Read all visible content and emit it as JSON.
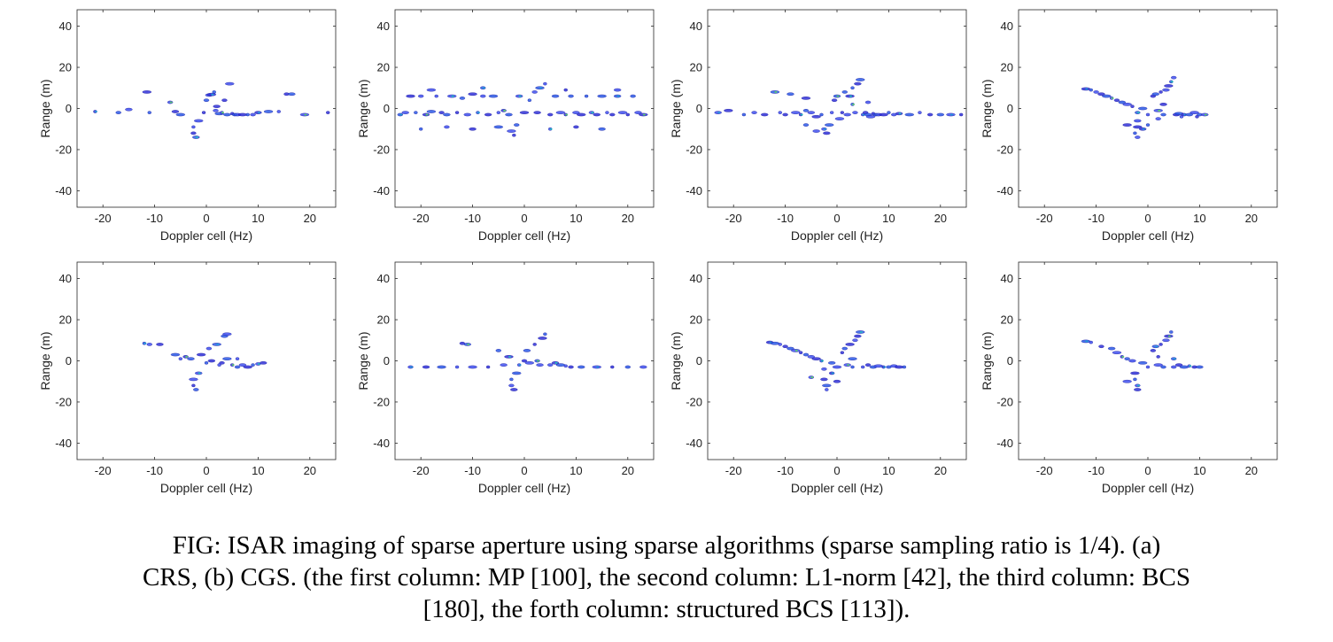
{
  "caption": {
    "lines": [
      "FIG:  ISAR imaging of sparse aperture using sparse algorithms (sparse sampling ratio is 1/4). (a)",
      "CRS, (b) CGS. (the first column: MP [100], the second column: L1-norm [42], the third column: BCS",
      "[180], the forth column: structured BCS [113])."
    ]
  },
  "chart_data": [
    {
      "type": "scatter",
      "row": "a",
      "column": 1,
      "xlabel": "Doppler cell (Hz)",
      "ylabel": "Range (m)",
      "xlim": [
        -25,
        25
      ],
      "ylim": [
        -48,
        48
      ],
      "xticks": [
        -20,
        -10,
        0,
        10,
        20
      ],
      "yticks": [
        40,
        20,
        0,
        -20,
        -40
      ],
      "points": [
        [
          -21.5,
          -1.5
        ],
        [
          -17,
          -2
        ],
        [
          -15,
          -0.5
        ],
        [
          -11.5,
          8
        ],
        [
          -11,
          -2
        ],
        [
          -7,
          3
        ],
        [
          -6,
          -1.5
        ],
        [
          -5,
          -3
        ],
        [
          -2.5,
          -9
        ],
        [
          -2.5,
          -12
        ],
        [
          -2,
          -14
        ],
        [
          -1.5,
          -6
        ],
        [
          -0.5,
          -2
        ],
        [
          0,
          4
        ],
        [
          0.5,
          6.5
        ],
        [
          1,
          6.8
        ],
        [
          1.5,
          8
        ],
        [
          1.8,
          -1
        ],
        [
          2,
          1
        ],
        [
          2.5,
          -2.5
        ],
        [
          3,
          -2
        ],
        [
          3.5,
          4
        ],
        [
          4,
          -3
        ],
        [
          4.5,
          12
        ],
        [
          5,
          -2.5
        ],
        [
          5.5,
          -3
        ],
        [
          6,
          -3
        ],
        [
          7,
          -3
        ],
        [
          8,
          -3
        ],
        [
          9,
          -3
        ],
        [
          10,
          -2
        ],
        [
          12,
          -1.5
        ],
        [
          14,
          -1.5
        ],
        [
          15.5,
          7
        ],
        [
          16.5,
          7
        ],
        [
          19,
          -3
        ],
        [
          23.5,
          -2
        ]
      ]
    },
    {
      "type": "scatter",
      "row": "a",
      "column": 2,
      "xlabel": "Doppler cell (Hz)",
      "ylabel": "Range (m)",
      "xlim": [
        -25,
        25
      ],
      "ylim": [
        -48,
        48
      ],
      "xticks": [
        -20,
        -10,
        0,
        10,
        20
      ],
      "yticks": [
        40,
        20,
        0,
        -20,
        -40
      ],
      "points": [
        [
          -24,
          -3
        ],
        [
          -23,
          -2
        ],
        [
          -22,
          6
        ],
        [
          -21,
          -2
        ],
        [
          -20,
          6
        ],
        [
          -19,
          -3
        ],
        [
          -18,
          -1.5
        ],
        [
          -17,
          6
        ],
        [
          -16,
          -2
        ],
        [
          -15,
          -3
        ],
        [
          -14,
          6
        ],
        [
          -13,
          -2
        ],
        [
          -12,
          5
        ],
        [
          -11,
          -3
        ],
        [
          -10,
          7
        ],
        [
          -9,
          -2
        ],
        [
          -8,
          6
        ],
        [
          -7,
          -3
        ],
        [
          -6,
          6
        ],
        [
          -5,
          -2
        ],
        [
          -4,
          -1
        ],
        [
          -3,
          -3
        ],
        [
          -2.5,
          -11
        ],
        [
          -2,
          -13
        ],
        [
          -1.5,
          -8
        ],
        [
          -1,
          6
        ],
        [
          0,
          -2
        ],
        [
          1,
          4
        ],
        [
          2,
          8
        ],
        [
          2.5,
          -2
        ],
        [
          3,
          10
        ],
        [
          4,
          12
        ],
        [
          5,
          -3
        ],
        [
          6,
          6
        ],
        [
          7,
          -2
        ],
        [
          8,
          -3
        ],
        [
          9,
          6
        ],
        [
          10,
          -2
        ],
        [
          11,
          -3
        ],
        [
          12,
          6
        ],
        [
          13,
          -2
        ],
        [
          14,
          -3
        ],
        [
          15,
          6
        ],
        [
          16,
          -2
        ],
        [
          17,
          -3
        ],
        [
          18,
          6
        ],
        [
          19,
          -2
        ],
        [
          20,
          -3
        ],
        [
          21,
          6
        ],
        [
          22,
          -2
        ],
        [
          23,
          -3
        ],
        [
          -20,
          -10
        ],
        [
          -15,
          -9
        ],
        [
          -10,
          -10
        ],
        [
          -5,
          -9
        ],
        [
          5,
          -10
        ],
        [
          10,
          -9
        ],
        [
          15,
          -10
        ],
        [
          -18,
          9
        ],
        [
          8,
          9
        ],
        [
          -8,
          10
        ],
        [
          18,
          9
        ]
      ]
    },
    {
      "type": "scatter",
      "row": "a",
      "column": 3,
      "xlabel": "Doppler cell (Hz)",
      "ylabel": "Range (m)",
      "xlim": [
        -25,
        25
      ],
      "ylim": [
        -48,
        48
      ],
      "xticks": [
        -20,
        -10,
        0,
        10,
        20
      ],
      "yticks": [
        40,
        20,
        0,
        -20,
        -40
      ],
      "points": [
        [
          -23,
          -2
        ],
        [
          -21,
          -1
        ],
        [
          -18,
          -3
        ],
        [
          -16,
          -2
        ],
        [
          -14,
          -3
        ],
        [
          -12,
          8
        ],
        [
          -11,
          -2
        ],
        [
          -10,
          -3
        ],
        [
          -9,
          7
        ],
        [
          -8,
          -2
        ],
        [
          -7,
          -3
        ],
        [
          -6,
          -1
        ],
        [
          -5,
          -2
        ],
        [
          -4,
          -4
        ],
        [
          -3,
          -3
        ],
        [
          -2.5,
          -10
        ],
        [
          -2,
          -12
        ],
        [
          -1.5,
          -8
        ],
        [
          -1,
          -2
        ],
        [
          -0.5,
          4
        ],
        [
          0,
          6
        ],
        [
          0.5,
          -5
        ],
        [
          1,
          -2
        ],
        [
          1.5,
          8
        ],
        [
          2,
          -3
        ],
        [
          2.5,
          6
        ],
        [
          3,
          10
        ],
        [
          3.5,
          -2
        ],
        [
          4,
          12
        ],
        [
          4.5,
          14
        ],
        [
          5,
          -3
        ],
        [
          5.5,
          -2
        ],
        [
          6,
          -3
        ],
        [
          6.5,
          -4
        ],
        [
          7,
          -2.5
        ],
        [
          7.5,
          -3
        ],
        [
          8,
          -3
        ],
        [
          9,
          -3
        ],
        [
          10,
          -2
        ],
        [
          11,
          -3
        ],
        [
          12,
          -2.5
        ],
        [
          14,
          -3
        ],
        [
          16,
          -2
        ],
        [
          18,
          -3
        ],
        [
          20,
          -3
        ],
        [
          22,
          -3
        ],
        [
          24,
          -3
        ],
        [
          -6,
          -8
        ],
        [
          -4,
          -11
        ],
        [
          -6,
          5
        ],
        [
          3,
          2
        ],
        [
          6,
          3
        ]
      ]
    },
    {
      "type": "scatter",
      "row": "a",
      "column": 4,
      "xlabel": "Doppler cell (Hz)",
      "ylabel": "Range (m)",
      "xlim": [
        -25,
        25
      ],
      "ylim": [
        -48,
        48
      ],
      "xticks": [
        -20,
        -10,
        0,
        10,
        20
      ],
      "yticks": [
        40,
        20,
        0,
        -20,
        -40
      ],
      "points": [
        [
          -12,
          9.5
        ],
        [
          -11,
          9
        ],
        [
          -10,
          8
        ],
        [
          -9,
          7
        ],
        [
          -8,
          6
        ],
        [
          -7,
          5
        ],
        [
          -6,
          4
        ],
        [
          -5,
          3
        ],
        [
          -4,
          2
        ],
        [
          -3,
          1
        ],
        [
          -2,
          -2
        ],
        [
          -2,
          -6
        ],
        [
          -2,
          -9
        ],
        [
          -2.5,
          -12
        ],
        [
          -2,
          -14
        ],
        [
          -1,
          -10
        ],
        [
          -1,
          0
        ],
        [
          0,
          -3
        ],
        [
          1,
          6
        ],
        [
          1.5,
          7
        ],
        [
          2,
          -1
        ],
        [
          2.5,
          8
        ],
        [
          3,
          -3
        ],
        [
          3.5,
          9
        ],
        [
          4,
          11
        ],
        [
          4.5,
          13
        ],
        [
          5,
          15
        ],
        [
          5.5,
          -3
        ],
        [
          6,
          -2.5
        ],
        [
          6.5,
          -4
        ],
        [
          7,
          -3
        ],
        [
          8,
          -3
        ],
        [
          9,
          -2
        ],
        [
          9.5,
          -4
        ],
        [
          10,
          -3
        ],
        [
          11,
          -3
        ],
        [
          -4,
          -8
        ],
        [
          0,
          -8
        ],
        [
          2,
          -5
        ],
        [
          3,
          2
        ]
      ]
    },
    {
      "type": "scatter",
      "row": "b",
      "column": 1,
      "xlabel": "Doppler cell (Hz)",
      "ylabel": "Range (m)",
      "xlim": [
        -25,
        25
      ],
      "ylim": [
        -48,
        48
      ],
      "xticks": [
        -20,
        -10,
        0,
        10,
        20
      ],
      "yticks": [
        40,
        20,
        0,
        -20,
        -40
      ],
      "points": [
        [
          -12,
          8.5
        ],
        [
          -11,
          8
        ],
        [
          -9,
          8
        ],
        [
          -6,
          3
        ],
        [
          -5,
          1
        ],
        [
          -4,
          2
        ],
        [
          -3,
          1
        ],
        [
          -2.5,
          -9
        ],
        [
          -2.5,
          -12
        ],
        [
          -2,
          -14
        ],
        [
          -1.5,
          -6
        ],
        [
          -1,
          3
        ],
        [
          0,
          -1
        ],
        [
          0.5,
          6
        ],
        [
          1,
          0
        ],
        [
          2,
          8
        ],
        [
          2.5,
          -2
        ],
        [
          3,
          -1
        ],
        [
          3.5,
          12
        ],
        [
          4,
          13
        ],
        [
          5,
          -2
        ],
        [
          6,
          -3
        ],
        [
          7,
          -2
        ],
        [
          8,
          -3
        ],
        [
          9,
          -2
        ],
        [
          10,
          -1.5
        ],
        [
          11,
          -1
        ],
        [
          4,
          1
        ],
        [
          6,
          1
        ]
      ]
    },
    {
      "type": "scatter",
      "row": "b",
      "column": 2,
      "xlabel": "Doppler cell (Hz)",
      "ylabel": "Range (m)",
      "xlim": [
        -25,
        25
      ],
      "ylim": [
        -48,
        48
      ],
      "xticks": [
        -20,
        -10,
        0,
        10,
        20
      ],
      "yticks": [
        40,
        20,
        0,
        -20,
        -40
      ],
      "points": [
        [
          -22,
          -3
        ],
        [
          -19,
          -3
        ],
        [
          -16,
          -3
        ],
        [
          -13,
          -3
        ],
        [
          -12,
          8.5
        ],
        [
          -11,
          8
        ],
        [
          -10,
          -3
        ],
        [
          -7,
          -3
        ],
        [
          -5,
          5
        ],
        [
          -4,
          -2
        ],
        [
          -3,
          2
        ],
        [
          -2.5,
          -9
        ],
        [
          -2.5,
          -12
        ],
        [
          -2,
          -14
        ],
        [
          -1.5,
          -6
        ],
        [
          -1,
          -2
        ],
        [
          0,
          0
        ],
        [
          0.5,
          5
        ],
        [
          1,
          -1
        ],
        [
          2,
          8
        ],
        [
          2.5,
          0
        ],
        [
          3,
          -2
        ],
        [
          3.5,
          11
        ],
        [
          4,
          13
        ],
        [
          5,
          -2
        ],
        [
          6,
          -1
        ],
        [
          7,
          -2
        ],
        [
          8,
          -2.5
        ],
        [
          9,
          -3
        ],
        [
          11,
          -3
        ],
        [
          14,
          -3
        ],
        [
          17,
          -3
        ],
        [
          20,
          -3
        ],
        [
          23,
          -3
        ]
      ]
    },
    {
      "type": "scatter",
      "row": "b",
      "column": 3,
      "xlabel": "Doppler cell (Hz)",
      "ylabel": "Range (m)",
      "xlim": [
        -25,
        25
      ],
      "ylim": [
        -48,
        48
      ],
      "xticks": [
        -20,
        -10,
        0,
        10,
        20
      ],
      "yticks": [
        40,
        20,
        0,
        -20,
        -40
      ],
      "points": [
        [
          -13,
          9
        ],
        [
          -12,
          8.5
        ],
        [
          -11,
          8
        ],
        [
          -10,
          7
        ],
        [
          -9,
          6
        ],
        [
          -8,
          5
        ],
        [
          -7,
          4
        ],
        [
          -6,
          3
        ],
        [
          -5,
          2
        ],
        [
          -4,
          1
        ],
        [
          -3,
          0
        ],
        [
          -2.5,
          -4
        ],
        [
          -2.5,
          -9
        ],
        [
          -2,
          -12
        ],
        [
          -2,
          -14
        ],
        [
          -1,
          -6
        ],
        [
          -1,
          -1
        ],
        [
          0,
          -3
        ],
        [
          1,
          4
        ],
        [
          1.5,
          6
        ],
        [
          2,
          -2
        ],
        [
          2.5,
          8
        ],
        [
          3,
          -3
        ],
        [
          3.5,
          10
        ],
        [
          4,
          12
        ],
        [
          4.5,
          14
        ],
        [
          5,
          -3
        ],
        [
          6,
          -2
        ],
        [
          7,
          -3
        ],
        [
          8,
          -2.5
        ],
        [
          9,
          -3
        ],
        [
          10,
          -3
        ],
        [
          11,
          -2.5
        ],
        [
          12,
          -3
        ],
        [
          13,
          -3
        ],
        [
          -5,
          -8
        ],
        [
          0,
          -10
        ],
        [
          3,
          1
        ]
      ]
    },
    {
      "type": "scatter",
      "row": "b",
      "column": 4,
      "xlabel": "Doppler cell (Hz)",
      "ylabel": "Range (m)",
      "xlim": [
        -25,
        25
      ],
      "ylim": [
        -48,
        48
      ],
      "xticks": [
        -20,
        -10,
        0,
        10,
        20
      ],
      "yticks": [
        40,
        20,
        0,
        -20,
        -40
      ],
      "points": [
        [
          -12,
          9.5
        ],
        [
          -11,
          9
        ],
        [
          -9,
          7
        ],
        [
          -7,
          6
        ],
        [
          -6,
          4
        ],
        [
          -5,
          2
        ],
        [
          -4,
          1
        ],
        [
          -3,
          0
        ],
        [
          -2.5,
          -6
        ],
        [
          -2.5,
          -9
        ],
        [
          -2,
          -12
        ],
        [
          -2,
          -14
        ],
        [
          -1,
          -1
        ],
        [
          0,
          -3
        ],
        [
          1,
          5
        ],
        [
          1.5,
          7
        ],
        [
          2,
          -2
        ],
        [
          2.5,
          8
        ],
        [
          3,
          -3
        ],
        [
          3.5,
          10
        ],
        [
          4,
          12
        ],
        [
          4.5,
          14
        ],
        [
          5,
          -3
        ],
        [
          6,
          -2
        ],
        [
          7,
          -3
        ],
        [
          8,
          -2.5
        ],
        [
          9,
          -3
        ],
        [
          10,
          -3
        ],
        [
          -4,
          -10
        ],
        [
          2,
          2
        ],
        [
          5,
          1
        ]
      ]
    }
  ]
}
